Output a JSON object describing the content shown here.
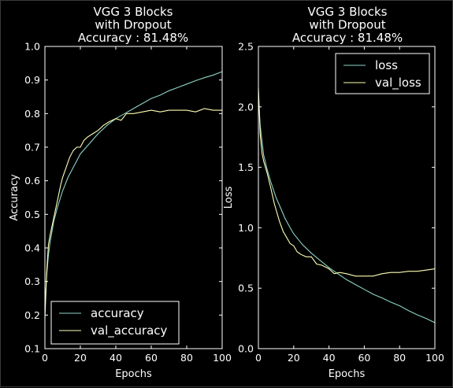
{
  "colors": {
    "background": "#000000",
    "axes": "#ffffff",
    "train": "#8dd3c7",
    "validation": "#feffb3"
  },
  "chart_data": [
    {
      "type": "line",
      "title": [
        "VGG 3 Blocks",
        "with Dropout",
        "Accuracy : 81.48%"
      ],
      "xlabel": "Epochs",
      "ylabel": "Accuracy",
      "xlim": [
        0,
        100
      ],
      "ylim": [
        0.1,
        1.0
      ],
      "xticks": [
        "0",
        "20",
        "40",
        "60",
        "80",
        "100"
      ],
      "yticks": [
        "0.1",
        "0.2",
        "0.3",
        "0.4",
        "0.5",
        "0.6",
        "0.7",
        "0.8",
        "0.9",
        "1.0"
      ],
      "grid": false,
      "legend_position": "lower-left",
      "series": [
        {
          "name": "accuracy",
          "x": [
            0,
            1,
            2,
            3,
            5,
            7,
            10,
            13,
            15,
            18,
            20,
            25,
            30,
            35,
            40,
            45,
            50,
            55,
            60,
            65,
            70,
            75,
            80,
            85,
            90,
            95,
            100
          ],
          "y": [
            0.22,
            0.32,
            0.38,
            0.42,
            0.48,
            0.52,
            0.57,
            0.61,
            0.63,
            0.66,
            0.68,
            0.71,
            0.74,
            0.765,
            0.785,
            0.8,
            0.815,
            0.83,
            0.845,
            0.855,
            0.868,
            0.878,
            0.888,
            0.898,
            0.907,
            0.915,
            0.925
          ]
        },
        {
          "name": "val_accuracy",
          "x": [
            0,
            1,
            2,
            3,
            5,
            7,
            9,
            10,
            12,
            14,
            16,
            18,
            20,
            22,
            24,
            27,
            30,
            33,
            36,
            40,
            43,
            46,
            50,
            55,
            60,
            65,
            70,
            75,
            80,
            85,
            90,
            95,
            100
          ],
          "y": [
            0.19,
            0.33,
            0.41,
            0.44,
            0.49,
            0.54,
            0.59,
            0.61,
            0.64,
            0.67,
            0.69,
            0.7,
            0.7,
            0.72,
            0.73,
            0.74,
            0.75,
            0.765,
            0.775,
            0.785,
            0.78,
            0.8,
            0.8,
            0.805,
            0.81,
            0.805,
            0.81,
            0.81,
            0.81,
            0.805,
            0.815,
            0.81,
            0.81
          ]
        }
      ]
    },
    {
      "type": "line",
      "title": [
        "VGG 3 Blocks",
        "with Dropout",
        "Accuracy : 81.48%"
      ],
      "xlabel": "Epochs",
      "ylabel": "Loss",
      "xlim": [
        0,
        100
      ],
      "ylim": [
        0.0,
        2.5
      ],
      "xticks": [
        "0",
        "20",
        "40",
        "60",
        "80",
        "100"
      ],
      "yticks": [
        "0.0",
        "0.5",
        "1.0",
        "1.5",
        "2.0",
        "2.5"
      ],
      "grid": false,
      "legend_position": "upper-right",
      "series": [
        {
          "name": "loss",
          "x": [
            0,
            1,
            2,
            3,
            5,
            7,
            10,
            13,
            15,
            18,
            20,
            25,
            30,
            35,
            40,
            45,
            50,
            55,
            60,
            65,
            70,
            75,
            80,
            85,
            90,
            95,
            100
          ],
          "y": [
            2.1,
            1.85,
            1.72,
            1.6,
            1.48,
            1.38,
            1.25,
            1.15,
            1.08,
            1.0,
            0.95,
            0.86,
            0.79,
            0.73,
            0.67,
            0.62,
            0.57,
            0.53,
            0.49,
            0.45,
            0.42,
            0.385,
            0.355,
            0.315,
            0.28,
            0.25,
            0.215
          ]
        },
        {
          "name": "val_loss",
          "x": [
            0,
            1,
            2,
            3,
            5,
            7,
            9,
            10,
            12,
            14,
            16,
            18,
            20,
            22,
            24,
            27,
            30,
            33,
            36,
            40,
            43,
            46,
            50,
            55,
            60,
            65,
            70,
            75,
            80,
            85,
            90,
            95,
            100
          ],
          "y": [
            2.16,
            1.78,
            1.62,
            1.55,
            1.45,
            1.33,
            1.2,
            1.15,
            1.05,
            0.97,
            0.92,
            0.87,
            0.85,
            0.8,
            0.78,
            0.76,
            0.76,
            0.7,
            0.69,
            0.66,
            0.62,
            0.63,
            0.62,
            0.6,
            0.6,
            0.6,
            0.62,
            0.63,
            0.63,
            0.64,
            0.64,
            0.65,
            0.66
          ]
        }
      ]
    }
  ]
}
